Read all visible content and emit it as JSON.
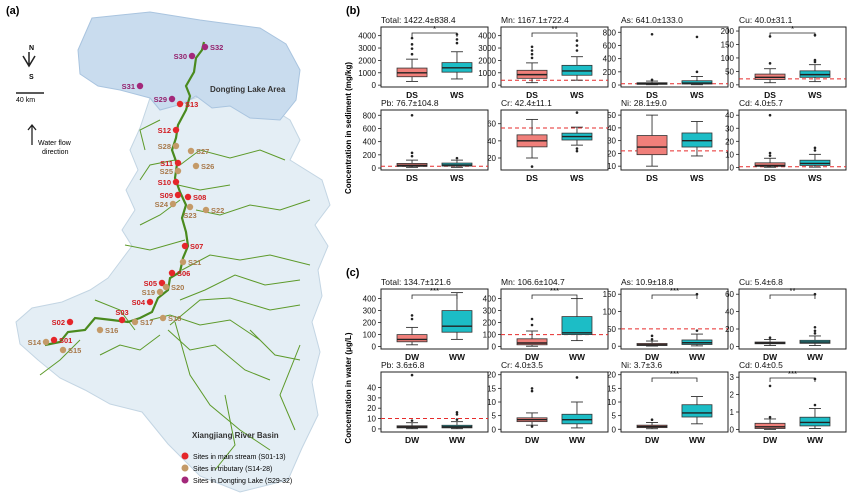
{
  "map": {
    "panel_label": "(a)",
    "lake_label": "Dongting Lake Area",
    "basin_label": "Xiangjiang River Basin",
    "north_label": "N",
    "south_label": "S",
    "scale_label": "40 km",
    "flow_label_1": "Water flow",
    "flow_label_2": "direction",
    "legend": [
      {
        "label": "Sites in main stream (S01-13)",
        "color": "#e5262a"
      },
      {
        "label": "Sites in tributary (S14-28)",
        "color": "#c49a68"
      },
      {
        "label": "Sites in Dongting Lake (S29-32)",
        "color": "#a3287a"
      }
    ],
    "sites": [
      {
        "id": "S01",
        "type": "main"
      },
      {
        "id": "S02",
        "type": "main"
      },
      {
        "id": "S03",
        "type": "main"
      },
      {
        "id": "S04",
        "type": "main"
      },
      {
        "id": "S05",
        "type": "main"
      },
      {
        "id": "S06",
        "type": "main"
      },
      {
        "id": "S07",
        "type": "main"
      },
      {
        "id": "S08",
        "type": "main"
      },
      {
        "id": "S09",
        "type": "main"
      },
      {
        "id": "S10",
        "type": "main"
      },
      {
        "id": "S11",
        "type": "main"
      },
      {
        "id": "S12",
        "type": "main"
      },
      {
        "id": "S13",
        "type": "main"
      },
      {
        "id": "S14",
        "type": "trib"
      },
      {
        "id": "S15",
        "type": "trib"
      },
      {
        "id": "S16",
        "type": "trib"
      },
      {
        "id": "S17",
        "type": "trib"
      },
      {
        "id": "S18",
        "type": "trib"
      },
      {
        "id": "S19",
        "type": "trib"
      },
      {
        "id": "S20",
        "type": "trib"
      },
      {
        "id": "S21",
        "type": "trib"
      },
      {
        "id": "S22",
        "type": "trib"
      },
      {
        "id": "S23",
        "type": "trib"
      },
      {
        "id": "S24",
        "type": "trib"
      },
      {
        "id": "S25",
        "type": "trib"
      },
      {
        "id": "S26",
        "type": "trib"
      },
      {
        "id": "S27",
        "type": "trib"
      },
      {
        "id": "S28",
        "type": "trib"
      },
      {
        "id": "S29",
        "type": "lake"
      },
      {
        "id": "S30",
        "type": "lake"
      },
      {
        "id": "S31",
        "type": "lake"
      },
      {
        "id": "S32",
        "type": "lake"
      }
    ]
  },
  "colors": {
    "left_box": "#f07f7a",
    "right_box": "#1cbdc6",
    "threshold": "#e62b2b",
    "river": "#4a8a1e",
    "lake": "#c9dcee",
    "basin": "#e4eef5"
  },
  "panel_b": {
    "label": "(b)",
    "ylabel": "Concentration in sediment (mg/kg)"
  },
  "panel_c": {
    "label": "(c)",
    "ylabel": "Concentration in water (μg/L)"
  },
  "chart_data": [
    {
      "type": "box",
      "panel": "b",
      "title": "Total: 1422.4±838.4",
      "categories": [
        "DS",
        "WS"
      ],
      "yticks": [
        0,
        1000,
        2000,
        3000,
        4000
      ],
      "ylim": [
        -150,
        4700
      ],
      "sig": "*",
      "threshold": null,
      "boxes": [
        {
          "q1": 680,
          "med": 1000,
          "q3": 1380,
          "wlo": 300,
          "whi": 2100,
          "out": [
            2500,
            2950,
            3300,
            3800
          ]
        },
        {
          "q1": 1050,
          "med": 1400,
          "q3": 1820,
          "wlo": 500,
          "whi": 2700,
          "out": [
            3400,
            3700,
            4100
          ]
        }
      ]
    },
    {
      "type": "box",
      "panel": "b",
      "title": "Mn: 1167.1±722.4",
      "categories": [
        "DS",
        "WS"
      ],
      "yticks": [
        0,
        1000,
        2000,
        3000,
        4000
      ],
      "ylim": [
        -150,
        4700
      ],
      "sig": "**",
      "threshold": 400,
      "boxes": [
        {
          "q1": 550,
          "med": 850,
          "q3": 1200,
          "wlo": 200,
          "whi": 1800,
          "out": [
            2200,
            2500,
            2800,
            3100
          ]
        },
        {
          "q1": 800,
          "med": 1150,
          "q3": 1600,
          "wlo": 400,
          "whi": 2300,
          "out": [
            2800,
            3200,
            3600
          ]
        }
      ]
    },
    {
      "type": "box",
      "panel": "b",
      "title": "As: 641.0±133.0",
      "categories": [
        "DS",
        "WS"
      ],
      "yticks": [
        0,
        200,
        400,
        600,
        800
      ],
      "ylim": [
        -30,
        880
      ],
      "sig": null,
      "threshold": 20,
      "boxes": [
        {
          "q1": 10,
          "med": 20,
          "q3": 35,
          "wlo": 5,
          "whi": 60,
          "out": [
            80,
            770
          ]
        },
        {
          "q1": 15,
          "med": 30,
          "q3": 65,
          "wlo": 5,
          "whi": 130,
          "out": [
            200,
            730
          ]
        }
      ]
    },
    {
      "type": "box",
      "panel": "b",
      "title": "Cu: 40.0±31.1",
      "categories": [
        "DS",
        "WS"
      ],
      "yticks": [
        0,
        50,
        100,
        150,
        200
      ],
      "ylim": [
        -8,
        215
      ],
      "sig": "*",
      "threshold": 22,
      "boxes": [
        {
          "q1": 20,
          "med": 28,
          "q3": 40,
          "wlo": 8,
          "whi": 60,
          "out": [
            80,
            180
          ]
        },
        {
          "q1": 28,
          "med": 38,
          "q3": 52,
          "wlo": 12,
          "whi": 75,
          "out": [
            85,
            92,
            185
          ]
        }
      ]
    },
    {
      "type": "box",
      "panel": "b",
      "title": "Pb: 76.7±104.8",
      "categories": [
        "DS",
        "WS"
      ],
      "yticks": [
        0,
        200,
        400,
        600,
        800
      ],
      "ylim": [
        -30,
        880
      ],
      "sig": null,
      "threshold": 26,
      "boxes": [
        {
          "q1": 25,
          "med": 40,
          "q3": 70,
          "wlo": 10,
          "whi": 120,
          "out": [
            180,
            230,
            800
          ]
        },
        {
          "q1": 30,
          "med": 45,
          "q3": 75,
          "wlo": 10,
          "whi": 120,
          "out": [
            150
          ]
        }
      ]
    },
    {
      "type": "box",
      "panel": "b",
      "title": "Cr: 42.4±11.1",
      "categories": [
        "DS",
        "WS"
      ],
      "yticks": [
        20,
        40,
        60
      ],
      "ylim": [
        6,
        76
      ],
      "sig": null,
      "threshold": 55,
      "boxes": [
        {
          "q1": 33,
          "med": 40,
          "q3": 47,
          "wlo": 20,
          "whi": 65,
          "out": [
            10
          ]
        },
        {
          "q1": 41,
          "med": 45,
          "q3": 49,
          "wlo": 35,
          "whi": 56,
          "out": [
            31,
            28,
            73
          ]
        }
      ]
    },
    {
      "type": "box",
      "panel": "b",
      "title": "Ni: 28.1±9.0",
      "categories": [
        "DS",
        "WS"
      ],
      "yticks": [
        10,
        20,
        30,
        40,
        50
      ],
      "ylim": [
        7,
        54
      ],
      "sig": null,
      "threshold": 22,
      "boxes": [
        {
          "q1": 19,
          "med": 25,
          "q3": 34,
          "wlo": 10,
          "whi": 50,
          "out": []
        },
        {
          "q1": 25,
          "med": 30,
          "q3": 36,
          "wlo": 18,
          "whi": 45,
          "out": []
        }
      ]
    },
    {
      "type": "box",
      "panel": "b",
      "title": "Cd: 4.0±5.7",
      "categories": [
        "DS",
        "WS"
      ],
      "yticks": [
        0,
        10,
        20,
        30,
        40
      ],
      "ylim": [
        -2,
        44
      ],
      "sig": null,
      "threshold": 0.5,
      "boxes": [
        {
          "q1": 0.8,
          "med": 1.5,
          "q3": 3.5,
          "wlo": 0.1,
          "whi": 7,
          "out": [
            9,
            11,
            40
          ]
        },
        {
          "q1": 1.5,
          "med": 3,
          "q3": 5.5,
          "wlo": 0.2,
          "whi": 10,
          "out": [
            13,
            15
          ]
        }
      ]
    },
    {
      "type": "box",
      "panel": "c",
      "title": "Total: 134.7±121.6",
      "categories": [
        "DW",
        "WW"
      ],
      "yticks": [
        0,
        100,
        200,
        300,
        400
      ],
      "ylim": [
        -20,
        480
      ],
      "sig": "***",
      "threshold": null,
      "boxes": [
        {
          "q1": 40,
          "med": 60,
          "q3": 100,
          "wlo": 15,
          "whi": 160,
          "out": [
            230,
            260
          ]
        },
        {
          "q1": 120,
          "med": 170,
          "q3": 300,
          "wlo": 60,
          "whi": 450,
          "out": []
        }
      ]
    },
    {
      "type": "box",
      "panel": "c",
      "title": "Mn: 106.6±104.7",
      "categories": [
        "DW",
        "WW"
      ],
      "yticks": [
        0,
        100,
        200,
        300,
        400
      ],
      "ylim": [
        -20,
        480
      ],
      "sig": "***",
      "threshold": 100,
      "boxes": [
        {
          "q1": 15,
          "med": 30,
          "q3": 65,
          "wlo": 3,
          "whi": 130,
          "out": [
            180,
            230
          ]
        },
        {
          "q1": 100,
          "med": 115,
          "q3": 250,
          "wlo": 50,
          "whi": 400,
          "out": []
        }
      ]
    },
    {
      "type": "box",
      "panel": "c",
      "title": "As: 10.9±18.8",
      "categories": [
        "DW",
        "WW"
      ],
      "yticks": [
        0,
        50,
        100,
        150
      ],
      "ylim": [
        -8,
        165
      ],
      "sig": "***",
      "threshold": 50,
      "boxes": [
        {
          "q1": 2,
          "med": 4,
          "q3": 8,
          "wlo": 0.5,
          "whi": 15,
          "out": [
            20,
            30
          ]
        },
        {
          "q1": 5,
          "med": 10,
          "q3": 18,
          "wlo": 1,
          "whi": 35,
          "out": [
            45,
            150
          ]
        }
      ]
    },
    {
      "type": "box",
      "panel": "c",
      "title": "Cu: 5.4±6.8",
      "categories": [
        "DW",
        "WW"
      ],
      "yticks": [
        0,
        20,
        40,
        60
      ],
      "ylim": [
        -3,
        66
      ],
      "sig": "**",
      "threshold": null,
      "boxes": [
        {
          "q1": 3,
          "med": 4,
          "q3": 5,
          "wlo": 1,
          "whi": 8,
          "out": [
            10
          ]
        },
        {
          "q1": 3.5,
          "med": 5,
          "q3": 7,
          "wlo": 1,
          "whi": 12,
          "out": [
            15,
            18,
            22,
            60
          ]
        }
      ]
    },
    {
      "type": "box",
      "panel": "c",
      "title": "Pb: 3.6±6.8",
      "categories": [
        "DW",
        "WW"
      ],
      "yticks": [
        0,
        10,
        20,
        30,
        40
      ],
      "ylim": [
        -3,
        55
      ],
      "sig": null,
      "threshold": 10,
      "boxes": [
        {
          "q1": 1,
          "med": 2,
          "q3": 3,
          "wlo": 0.2,
          "whi": 6,
          "out": [
            8,
            52
          ]
        },
        {
          "q1": 1,
          "med": 2,
          "q3": 3.5,
          "wlo": 0.2,
          "whi": 7,
          "out": [
            9,
            14,
            16
          ]
        }
      ]
    },
    {
      "type": "box",
      "panel": "c",
      "title": "Cr: 4.0±3.5",
      "categories": [
        "DW",
        "WW"
      ],
      "yticks": [
        0,
        5,
        10,
        15,
        20
      ],
      "ylim": [
        -1,
        21
      ],
      "sig": null,
      "threshold": null,
      "boxes": [
        {
          "q1": 2.8,
          "med": 3.5,
          "q3": 4.2,
          "wlo": 1.5,
          "whi": 6,
          "out": [
            1,
            14,
            15
          ]
        },
        {
          "q1": 2,
          "med": 3.5,
          "q3": 5.5,
          "wlo": 0.5,
          "whi": 10,
          "out": [
            19
          ]
        }
      ]
    },
    {
      "type": "box",
      "panel": "c",
      "title": "Ni: 3.7±3.6",
      "categories": [
        "DW",
        "WW"
      ],
      "yticks": [
        0,
        5,
        10,
        15,
        20
      ],
      "ylim": [
        -1,
        21
      ],
      "sig": "***",
      "threshold": null,
      "boxes": [
        {
          "q1": 0.6,
          "med": 1,
          "q3": 1.5,
          "wlo": 0.2,
          "whi": 2.5,
          "out": [
            3.5
          ]
        },
        {
          "q1": 4.5,
          "med": 6,
          "q3": 9,
          "wlo": 2,
          "whi": 12,
          "out": []
        }
      ]
    },
    {
      "type": "box",
      "panel": "c",
      "title": "Cd: 0.4±0.5",
      "categories": [
        "DW",
        "WW"
      ],
      "yticks": [
        0,
        1,
        2,
        3
      ],
      "ylim": [
        -0.15,
        3.3
      ],
      "sig": "***",
      "threshold": null,
      "boxes": [
        {
          "q1": 0.05,
          "med": 0.15,
          "q3": 0.35,
          "wlo": 0,
          "whi": 0.6,
          "out": [
            0.7,
            2.5
          ]
        },
        {
          "q1": 0.2,
          "med": 0.4,
          "q3": 0.7,
          "wlo": 0.05,
          "whi": 1.2,
          "out": [
            1.4,
            2.9
          ]
        }
      ]
    }
  ]
}
